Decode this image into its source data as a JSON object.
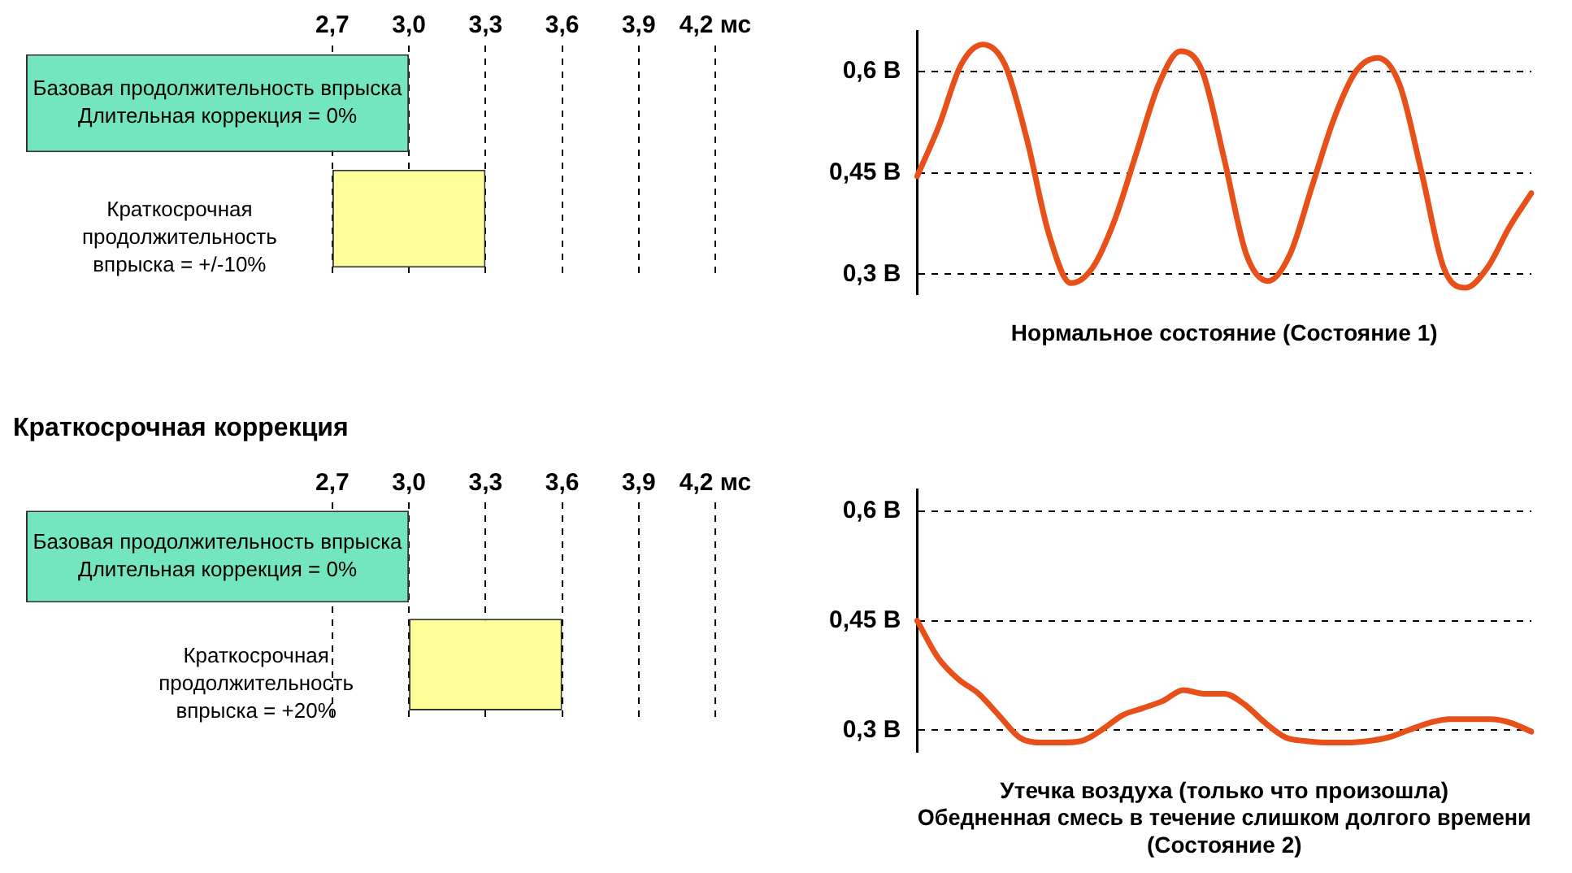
{
  "chart_data": [
    {
      "type": "bar",
      "orientation": "horizontal",
      "categories": [
        "Базовая продолжительность впрыска Длительная коррекция = 0%",
        "Краткосрочная продолжительность впрыска = +/-10%"
      ],
      "base": [
        1.5,
        2.7
      ],
      "values": [
        1.5,
        0.6
      ],
      "colors": [
        "#73e6c0",
        "#ffff99"
      ],
      "xlim": [
        1.5,
        4.2
      ],
      "xticks": [
        {
          "value": 2.7,
          "label": "2,7"
        },
        {
          "value": 3.0,
          "label": "3,0"
        },
        {
          "value": 3.3,
          "label": "3,3"
        },
        {
          "value": 3.6,
          "label": "3,6"
        },
        {
          "value": 3.9,
          "label": "3,9"
        },
        {
          "value": 4.2,
          "label": "4,2 мс"
        }
      ],
      "grid": "x"
    },
    {
      "type": "line",
      "categories": [
        null,
        null,
        null,
        null,
        null,
        null,
        null,
        null,
        null,
        null,
        null,
        null,
        null,
        null,
        null,
        null,
        null,
        null,
        null,
        null,
        null,
        null,
        null,
        null,
        null,
        null,
        null,
        null,
        null
      ],
      "series": [
        {
          "color": "#e8501a",
          "values": [
            0.445,
            0.52,
            0.61,
            0.64,
            0.61,
            0.5,
            0.36,
            0.287,
            0.31,
            0.38,
            0.48,
            0.58,
            0.63,
            0.6,
            0.47,
            0.33,
            0.29,
            0.33,
            0.43,
            0.53,
            0.6,
            0.62,
            0.58,
            0.45,
            0.31,
            0.28,
            0.31,
            0.37,
            0.42
          ]
        }
      ],
      "ylim": [
        0.27,
        0.66
      ],
      "yticks": [
        {
          "value": 0.3,
          "label": "0,3 В"
        },
        {
          "value": 0.45,
          "label": "0,45 В"
        },
        {
          "value": 0.6,
          "label": "0,6 В"
        }
      ],
      "grid": "y",
      "marker": "none",
      "tick_labels": "y",
      "xlabel": "Нормальное состояние (Состояние 1)"
    },
    {
      "type": "bar",
      "orientation": "horizontal",
      "title": "Краткосрочная коррекция",
      "categories": [
        "Базовая продолжительность впрыска Длительная коррекция = 0%",
        "Краткосрочная продолжительность впрыска = +20%"
      ],
      "base": [
        1.5,
        3.0
      ],
      "values": [
        1.5,
        0.6
      ],
      "colors": [
        "#73e6c0",
        "#ffff99"
      ],
      "xlim": [
        1.5,
        4.2
      ],
      "xticks": [
        {
          "value": 2.7,
          "label": "2,7"
        },
        {
          "value": 3.0,
          "label": "3,0"
        },
        {
          "value": 3.3,
          "label": "3,3"
        },
        {
          "value": 3.6,
          "label": "3,6"
        },
        {
          "value": 3.9,
          "label": "3,9"
        },
        {
          "value": 4.2,
          "label": "4,2 мс"
        }
      ],
      "grid": "x"
    },
    {
      "type": "line",
      "categories": [
        null,
        null,
        null,
        null,
        null,
        null,
        null,
        null,
        null,
        null,
        null,
        null,
        null,
        null,
        null,
        null,
        null,
        null,
        null,
        null,
        null,
        null,
        null,
        null,
        null,
        null,
        null,
        null,
        null,
        null,
        null
      ],
      "series": [
        {
          "color": "#e8501a",
          "values": [
            0.45,
            0.4,
            0.37,
            0.35,
            0.32,
            0.29,
            0.283,
            0.283,
            0.285,
            0.3,
            0.32,
            0.33,
            0.34,
            0.355,
            0.35,
            0.35,
            0.335,
            0.31,
            0.29,
            0.285,
            0.283,
            0.283,
            0.285,
            0.29,
            0.3,
            0.31,
            0.315,
            0.315,
            0.315,
            0.31,
            0.298
          ]
        }
      ],
      "ylim": [
        0.27,
        0.63
      ],
      "yticks": [
        {
          "value": 0.3,
          "label": "0,3 В"
        },
        {
          "value": 0.45,
          "label": "0,45 В"
        },
        {
          "value": 0.6,
          "label": "0,6 В"
        }
      ],
      "grid": "y",
      "marker": "none",
      "tick_labels": "y",
      "xlabel": "Утечка воздуха (только что произошла)\nОбедненная смесь в течение слишком долгого времени\n(Состояние 2)"
    }
  ]
}
